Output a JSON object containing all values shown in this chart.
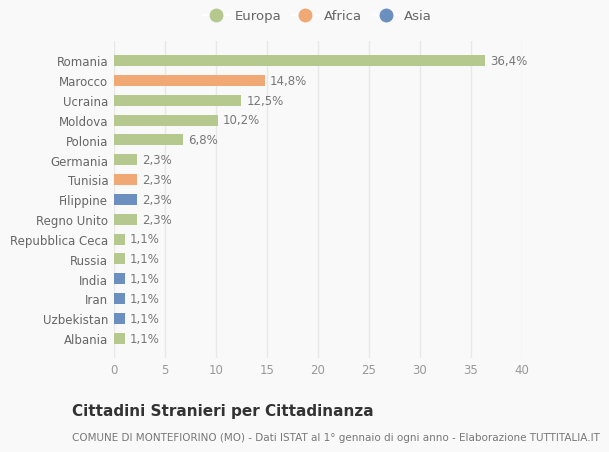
{
  "categories": [
    "Romania",
    "Marocco",
    "Ucraina",
    "Moldova",
    "Polonia",
    "Germania",
    "Tunisia",
    "Filippine",
    "Regno Unito",
    "Repubblica Ceca",
    "Russia",
    "India",
    "Iran",
    "Uzbekistan",
    "Albania"
  ],
  "values": [
    36.4,
    14.8,
    12.5,
    10.2,
    6.8,
    2.3,
    2.3,
    2.3,
    2.3,
    1.1,
    1.1,
    1.1,
    1.1,
    1.1,
    1.1
  ],
  "labels": [
    "36,4%",
    "14,8%",
    "12,5%",
    "10,2%",
    "6,8%",
    "2,3%",
    "2,3%",
    "2,3%",
    "2,3%",
    "1,1%",
    "1,1%",
    "1,1%",
    "1,1%",
    "1,1%",
    "1,1%"
  ],
  "continents": [
    "Europa",
    "Africa",
    "Europa",
    "Europa",
    "Europa",
    "Europa",
    "Africa",
    "Asia",
    "Europa",
    "Europa",
    "Europa",
    "Asia",
    "Asia",
    "Asia",
    "Europa"
  ],
  "colors": {
    "Europa": "#b5c98e",
    "Africa": "#f0a875",
    "Asia": "#6b8fbf"
  },
  "legend_entries": [
    "Europa",
    "Africa",
    "Asia"
  ],
  "xlim": [
    0,
    40
  ],
  "xticks": [
    0,
    5,
    10,
    15,
    20,
    25,
    30,
    35,
    40
  ],
  "title": "Cittadini Stranieri per Cittadinanza",
  "subtitle": "COMUNE DI MONTEFIORINO (MO) - Dati ISTAT al 1° gennaio di ogni anno - Elaborazione TUTTITALIA.IT",
  "background_color": "#f9f9f9",
  "grid_color": "#e8e8e8",
  "bar_height": 0.55,
  "label_fontsize": 8.5,
  "tick_fontsize": 8.5,
  "title_fontsize": 11,
  "subtitle_fontsize": 7.5
}
